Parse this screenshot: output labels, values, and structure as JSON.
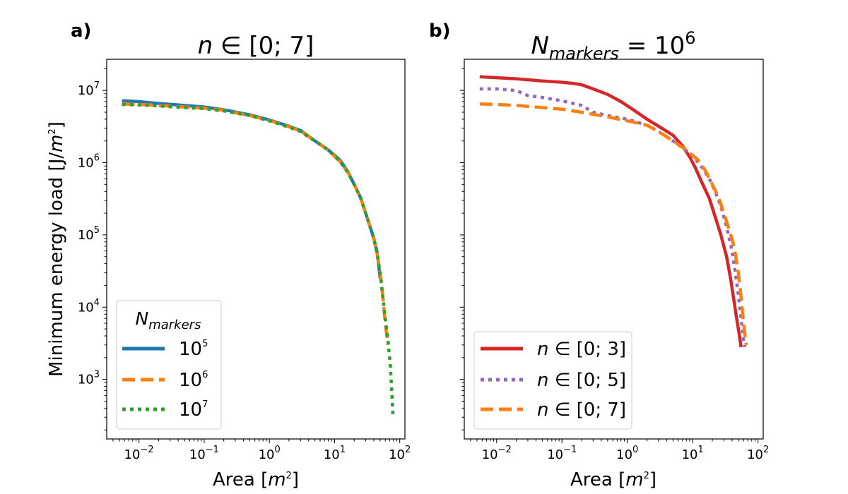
{
  "chart_data": [
    {
      "panel": "a)",
      "type": "line",
      "title": "n ∈ [0; 7]",
      "title_parts": {
        "var": "n",
        "rest": " ∈ [0; 7]"
      },
      "xlabel": "Area [m²]",
      "xlabel_parts": {
        "pre": "Area [",
        "var": "m",
        "sup": "2",
        "post": "]"
      },
      "ylabel": "Minimum energy load [J/m²]",
      "ylabel_parts": {
        "pre": "Minimum energy load [J/",
        "var": "m",
        "sup": "2",
        "post": "]"
      },
      "xscale": "log",
      "yscale": "log",
      "xlim": [
        0.0032,
        120
      ],
      "ylim": [
        150,
        27000000
      ],
      "xticks": [
        {
          "value": 0.01,
          "base": "10",
          "exp": "−2"
        },
        {
          "value": 0.1,
          "base": "10",
          "exp": "−1"
        },
        {
          "value": 1,
          "base": "10",
          "exp": "0"
        },
        {
          "value": 10,
          "base": "10",
          "exp": "1"
        },
        {
          "value": 100,
          "base": "10",
          "exp": "2"
        }
      ],
      "yticks": [
        {
          "value": 1000,
          "base": "10",
          "exp": "3"
        },
        {
          "value": 10000,
          "base": "10",
          "exp": "4"
        },
        {
          "value": 100000,
          "base": "10",
          "exp": "5"
        },
        {
          "value": 1000000,
          "base": "10",
          "exp": "6"
        },
        {
          "value": 10000000,
          "base": "10",
          "exp": "7"
        }
      ],
      "legend": {
        "title": "N_markers",
        "title_parts": {
          "var": "N",
          "sub": "markers"
        },
        "location": "lower-left"
      },
      "series": [
        {
          "name": "10^5",
          "label_base": "10",
          "label_exp": "5",
          "color": "#1f77b4",
          "style": "solid",
          "points": [
            [
              0.0055,
              7200000
            ],
            [
              0.01,
              7000000
            ],
            [
              0.02,
              6600000
            ],
            [
              0.05,
              6200000
            ],
            [
              0.1,
              5900000
            ],
            [
              0.2,
              5400000
            ],
            [
              0.5,
              4600000
            ],
            [
              1,
              3900000
            ],
            [
              2,
              3200000
            ],
            [
              3,
              2800000
            ],
            [
              5,
              2000000
            ],
            [
              8,
              1500000
            ],
            [
              12,
              1100000
            ],
            [
              16,
              750000
            ],
            [
              20,
              500000
            ],
            [
              25,
              330000
            ],
            [
              30,
              200000
            ],
            [
              35,
              130000
            ],
            [
              40,
              90000
            ],
            [
              45,
              57000
            ],
            [
              48,
              35000
            ],
            [
              50,
              25000
            ]
          ]
        },
        {
          "name": "10^6",
          "label_base": "10",
          "label_exp": "6",
          "color": "#ff7f0e",
          "style": "dashed",
          "points": [
            [
              0.0055,
              6500000
            ],
            [
              0.01,
              6400000
            ],
            [
              0.02,
              6200000
            ],
            [
              0.05,
              5900000
            ],
            [
              0.1,
              5700000
            ],
            [
              0.2,
              5300000
            ],
            [
              0.5,
              4500000
            ],
            [
              1,
              3850000
            ],
            [
              2,
              3150000
            ],
            [
              3,
              2750000
            ],
            [
              5,
              2000000
            ],
            [
              8,
              1500000
            ],
            [
              12,
              1050000
            ],
            [
              16,
              740000
            ],
            [
              20,
              500000
            ],
            [
              25,
              330000
            ],
            [
              30,
              200000
            ],
            [
              35,
              130000
            ],
            [
              40,
              88000
            ],
            [
              45,
              55000
            ],
            [
              50,
              30000
            ],
            [
              55,
              14000
            ],
            [
              60,
              6000
            ],
            [
              66,
              3000
            ]
          ]
        },
        {
          "name": "10^7",
          "label_base": "10",
          "label_exp": "7",
          "color": "#2ca02c",
          "style": "dotted",
          "points": [
            [
              0.0055,
              6400000
            ],
            [
              0.01,
              6300000
            ],
            [
              0.02,
              6100000
            ],
            [
              0.05,
              5800000
            ],
            [
              0.1,
              5600000
            ],
            [
              0.2,
              5200000
            ],
            [
              0.5,
              4500000
            ],
            [
              1,
              3800000
            ],
            [
              2,
              3100000
            ],
            [
              3,
              2700000
            ],
            [
              5,
              2000000
            ],
            [
              8,
              1500000
            ],
            [
              12,
              1050000
            ],
            [
              16,
              730000
            ],
            [
              20,
              500000
            ],
            [
              25,
              330000
            ],
            [
              30,
              200000
            ],
            [
              35,
              130000
            ],
            [
              40,
              88000
            ],
            [
              45,
              55000
            ],
            [
              50,
              30000
            ],
            [
              55,
              14000
            ],
            [
              60,
              7000
            ],
            [
              66,
              3500
            ],
            [
              72,
              1500
            ],
            [
              76,
              600
            ],
            [
              79,
              300
            ]
          ]
        }
      ]
    },
    {
      "panel": "b)",
      "type": "line",
      "title": "N_markers = 10^6",
      "title_parts": {
        "var": "N",
        "sub": "markers",
        "rest": " = 10",
        "sup": "6"
      },
      "xlabel": "Area [m²]",
      "xlabel_parts": {
        "pre": "Area [",
        "var": "m",
        "sup": "2",
        "post": "]"
      },
      "xscale": "log",
      "yscale": "log",
      "xlim": [
        0.0032,
        120
      ],
      "ylim": [
        150,
        27000000
      ],
      "xticks": [
        {
          "value": 0.01,
          "base": "10",
          "exp": "−2"
        },
        {
          "value": 0.1,
          "base": "10",
          "exp": "−1"
        },
        {
          "value": 1,
          "base": "10",
          "exp": "0"
        },
        {
          "value": 10,
          "base": "10",
          "exp": "1"
        },
        {
          "value": 100,
          "base": "10",
          "exp": "2"
        }
      ],
      "yticks_labeled": false,
      "legend": {
        "location": "lower-left"
      },
      "series": [
        {
          "name": "n ∈ [0; 3]",
          "label_var": "n",
          "label_rest": " ∈ [0; 3]",
          "color": "#d62728",
          "style": "solid",
          "points": [
            [
              0.0055,
              15500000
            ],
            [
              0.01,
              15000000
            ],
            [
              0.02,
              14500000
            ],
            [
              0.05,
              13500000
            ],
            [
              0.1,
              13000000
            ],
            [
              0.15,
              12500000
            ],
            [
              0.2,
              12000000
            ],
            [
              0.3,
              10500000
            ],
            [
              0.5,
              8800000
            ],
            [
              0.8,
              7000000
            ],
            [
              1.2,
              5500000
            ],
            [
              2,
              4000000
            ],
            [
              3,
              3200000
            ],
            [
              5,
              2400000
            ],
            [
              7,
              1700000
            ],
            [
              9,
              1200000
            ],
            [
              11,
              850000
            ],
            [
              14,
              520000
            ],
            [
              18,
              320000
            ],
            [
              22,
              180000
            ],
            [
              27,
              100000
            ],
            [
              33,
              50000
            ],
            [
              38,
              25000
            ],
            [
              43,
              12000
            ],
            [
              47,
              7000
            ],
            [
              52,
              4000
            ],
            [
              55,
              2800
            ]
          ]
        },
        {
          "name": "n ∈ [0; 5]",
          "label_var": "n",
          "label_rest": " ∈ [0; 5]",
          "color": "#9467bd",
          "style": "dotted",
          "points": [
            [
              0.0055,
              10500000
            ],
            [
              0.01,
              10500000
            ],
            [
              0.02,
              10000000
            ],
            [
              0.03,
              8500000
            ],
            [
              0.05,
              8000000
            ],
            [
              0.1,
              7200000
            ],
            [
              0.2,
              6200000
            ],
            [
              0.3,
              5000000
            ],
            [
              0.5,
              4500000
            ],
            [
              1,
              4000000
            ],
            [
              2,
              3300000
            ],
            [
              3,
              2700000
            ],
            [
              5,
              2000000
            ],
            [
              7,
              1600000
            ],
            [
              10,
              1250000
            ],
            [
              14,
              850000
            ],
            [
              18,
              600000
            ],
            [
              22,
              400000
            ],
            [
              27,
              250000
            ],
            [
              33,
              130000
            ],
            [
              40,
              60000
            ],
            [
              45,
              30000
            ],
            [
              50,
              15000
            ],
            [
              55,
              7000
            ],
            [
              60,
              3500
            ],
            [
              63,
              2800
            ]
          ]
        },
        {
          "name": "n ∈ [0; 7]",
          "label_var": "n",
          "label_rest": " ∈ [0; 7]",
          "color": "#ff7f0e",
          "style": "dashed",
          "points": [
            [
              0.0055,
              6500000
            ],
            [
              0.01,
              6400000
            ],
            [
              0.02,
              6200000
            ],
            [
              0.05,
              5800000
            ],
            [
              0.1,
              5500000
            ],
            [
              0.2,
              5000000
            ],
            [
              0.5,
              4300000
            ],
            [
              1,
              3800000
            ],
            [
              2,
              3300000
            ],
            [
              3,
              2700000
            ],
            [
              5,
              2000000
            ],
            [
              8,
              1500000
            ],
            [
              12,
              1100000
            ],
            [
              16,
              750000
            ],
            [
              20,
              500000
            ],
            [
              25,
              330000
            ],
            [
              30,
              200000
            ],
            [
              35,
              130000
            ],
            [
              40,
              88000
            ],
            [
              45,
              55000
            ],
            [
              50,
              30000
            ],
            [
              55,
              14000
            ],
            [
              60,
              6000
            ],
            [
              66,
              3000
            ]
          ]
        }
      ]
    }
  ]
}
